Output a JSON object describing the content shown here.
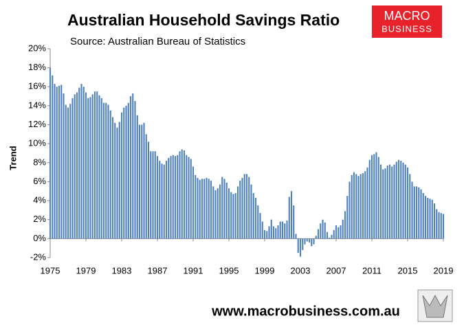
{
  "chart_data": {
    "type": "bar",
    "title": "Australian Household Savings Ratio",
    "subtitle": "Source: Australian Bureau of Statistics",
    "ylabel": "Trend",
    "color": "#4f81bd",
    "ylim": [
      -2,
      20
    ],
    "yticks": [
      {
        "value": -2,
        "label": "-2%"
      },
      {
        "value": 0,
        "label": "0%"
      },
      {
        "value": 2,
        "label": "2%"
      },
      {
        "value": 4,
        "label": "4%"
      },
      {
        "value": 6,
        "label": "6%"
      },
      {
        "value": 8,
        "label": "8%"
      },
      {
        "value": 10,
        "label": "10%"
      },
      {
        "value": 12,
        "label": "12%"
      },
      {
        "value": 14,
        "label": "14%"
      },
      {
        "value": 16,
        "label": "16%"
      },
      {
        "value": 18,
        "label": "18%"
      },
      {
        "value": 20,
        "label": "20%"
      }
    ],
    "xlim": [
      1975,
      2019
    ],
    "xticks": [
      1975,
      1979,
      1983,
      1987,
      1991,
      1995,
      1999,
      2003,
      2007,
      2011,
      2015,
      2019
    ],
    "x": [
      1975,
      1975.25,
      1975.5,
      1975.75,
      1976,
      1976.25,
      1976.5,
      1976.75,
      1977,
      1977.25,
      1977.5,
      1977.75,
      1978,
      1978.25,
      1978.5,
      1978.75,
      1979,
      1979.25,
      1979.5,
      1979.75,
      1980,
      1980.25,
      1980.5,
      1980.75,
      1981,
      1981.25,
      1981.5,
      1981.75,
      1982,
      1982.25,
      1982.5,
      1982.75,
      1983,
      1983.25,
      1983.5,
      1983.75,
      1984,
      1984.25,
      1984.5,
      1984.75,
      1985,
      1985.25,
      1985.5,
      1985.75,
      1986,
      1986.25,
      1986.5,
      1986.75,
      1987,
      1987.25,
      1987.5,
      1987.75,
      1988,
      1988.25,
      1988.5,
      1988.75,
      1989,
      1989.25,
      1989.5,
      1989.75,
      1990,
      1990.25,
      1990.5,
      1990.75,
      1991,
      1991.25,
      1991.5,
      1991.75,
      1992,
      1992.25,
      1992.5,
      1992.75,
      1993,
      1993.25,
      1993.5,
      1993.75,
      1994,
      1994.25,
      1994.5,
      1994.75,
      1995,
      1995.25,
      1995.5,
      1995.75,
      1996,
      1996.25,
      1996.5,
      1996.75,
      1997,
      1997.25,
      1997.5,
      1997.75,
      1998,
      1998.25,
      1998.5,
      1998.75,
      1999,
      1999.25,
      1999.5,
      1999.75,
      2000,
      2000.25,
      2000.5,
      2000.75,
      2001,
      2001.25,
      2001.5,
      2001.75,
      2002,
      2002.25,
      2002.5,
      2002.75,
      2003,
      2003.25,
      2003.5,
      2003.75,
      2004,
      2004.25,
      2004.5,
      2004.75,
      2005,
      2005.25,
      2005.5,
      2005.75,
      2006,
      2006.25,
      2006.5,
      2006.75,
      2007,
      2007.25,
      2007.5,
      2007.75,
      2008,
      2008.25,
      2008.5,
      2008.75,
      2009,
      2009.25,
      2009.5,
      2009.75,
      2010,
      2010.25,
      2010.5,
      2010.75,
      2011,
      2011.25,
      2011.5,
      2011.75,
      2012,
      2012.25,
      2012.5,
      2012.75,
      2013,
      2013.25,
      2013.5,
      2013.75,
      2014,
      2014.25,
      2014.5,
      2014.75,
      2015,
      2015.25,
      2015.5,
      2015.75,
      2016,
      2016.25,
      2016.5,
      2016.75,
      2017,
      2017.25,
      2017.5,
      2017.75,
      2018,
      2018.25,
      2018.5,
      2018.75,
      2019
    ],
    "values": [
      18,
      17.2,
      16.3,
      16,
      16.1,
      16.2,
      15.3,
      14.1,
      13.8,
      14.2,
      14.8,
      15.2,
      15.4,
      15.9,
      16.3,
      16,
      15.4,
      14.8,
      14.9,
      15.2,
      15.5,
      15.5,
      15.1,
      14.8,
      14.3,
      14.3,
      14.1,
      13.5,
      12.8,
      12.2,
      11.7,
      12.3,
      13.3,
      13.8,
      14,
      14.3,
      15,
      15.3,
      14.5,
      13,
      12,
      12,
      12.2,
      11,
      10.2,
      9.2,
      9.2,
      9.2,
      8.7,
      8.2,
      7.9,
      7.8,
      8.2,
      8.5,
      8.7,
      8.8,
      8.7,
      8.8,
      9.2,
      9.4,
      9.3,
      8.8,
      8.6,
      8.4,
      7.6,
      6.7,
      6.4,
      6.2,
      6.3,
      6.3,
      6.4,
      6.3,
      6.1,
      5.5,
      5.1,
      5.3,
      5.7,
      6.5,
      6.3,
      5.9,
      5.3,
      4.9,
      4.7,
      4.8,
      5.5,
      6.1,
      6.4,
      6.8,
      6.8,
      6.5,
      5.7,
      4.8,
      4.3,
      3.5,
      2.7,
      1.8,
      0.9,
      0.8,
      1.3,
      2,
      1.3,
      1.1,
      1.4,
      1.8,
      1.8,
      1.6,
      1.9,
      4.4,
      5,
      3.5,
      0.5,
      -1.5,
      -1.9,
      -1.2,
      -0.6,
      -0.3,
      -0.4,
      -0.8,
      -0.6,
      0.3,
      1,
      1.6,
      2,
      1.7,
      0.7,
      0.1,
      0.4,
      0.9,
      1.4,
      1.2,
      1.4,
      2,
      2.9,
      4.5,
      6,
      6.7,
      7,
      6.8,
      6.6,
      6.8,
      6.9,
      7.1,
      7.5,
      8.3,
      8.8,
      8.9,
      9.1,
      8.6,
      7.8,
      7.3,
      7.4,
      7.7,
      7.8,
      7.6,
      7.8,
      8.1,
      8.3,
      8.2,
      8,
      7.8,
      7.5,
      6.8,
      6,
      5.5,
      5.5,
      5.4,
      5.2,
      4.8,
      4.5,
      4.3,
      4.2,
      4.1,
      3.7,
      3.1,
      2.8,
      2.7,
      2.6
    ]
  },
  "logo": {
    "line1": "MACRO",
    "line2": "BUSINESS"
  },
  "footer": "www.macrobusiness.com.au"
}
